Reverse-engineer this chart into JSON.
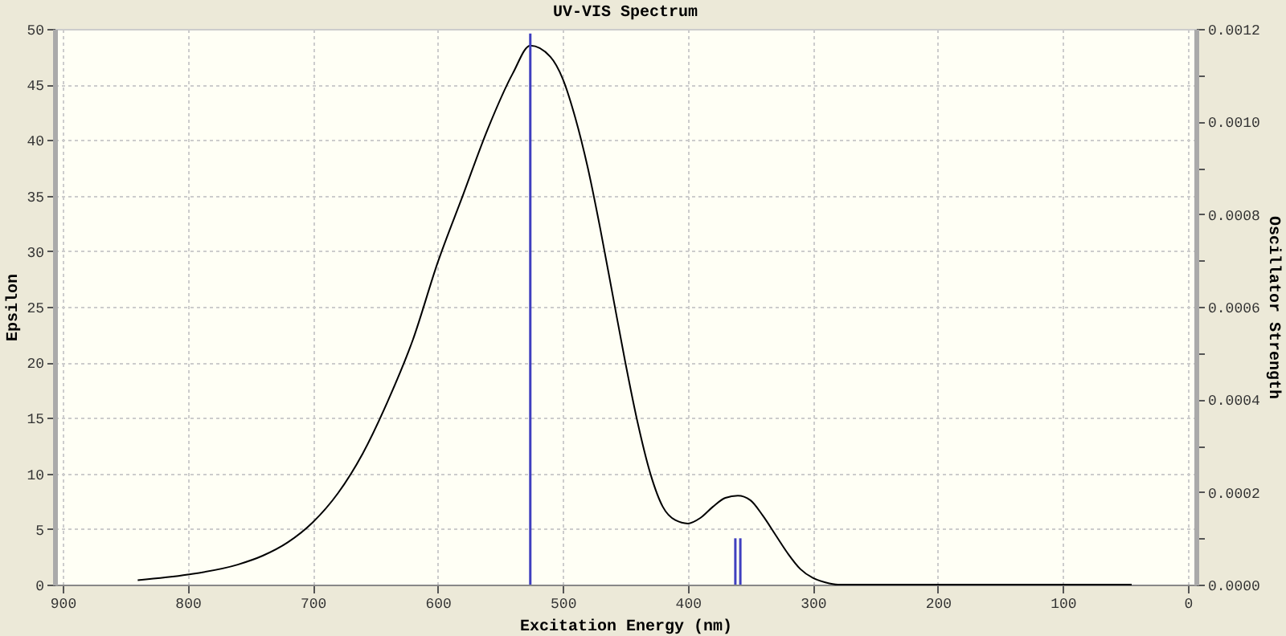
{
  "chart_data": {
    "type": "line",
    "title": "UV-VIS Spectrum",
    "xlabel": "Excitation Energy (nm)",
    "ylabel": "Epsilon",
    "y2label": "Oscillator Strength",
    "xlim": [
      900,
      0
    ],
    "xticks": [
      900,
      800,
      700,
      600,
      500,
      400,
      300,
      200,
      100,
      0
    ],
    "ylim": [
      0,
      50
    ],
    "yticks": [
      0,
      5,
      10,
      15,
      20,
      25,
      30,
      35,
      40,
      45,
      50
    ],
    "y2lim": [
      0,
      0.0012
    ],
    "y2ticks": [
      {
        "value": 0,
        "label": "0.0000"
      },
      {
        "value": 0.0001,
        "label": null
      },
      {
        "value": 0.0002,
        "label": "0.0002"
      },
      {
        "value": 0.0003,
        "label": null
      },
      {
        "value": 0.0004,
        "label": "0.0004"
      },
      {
        "value": 0.0005,
        "label": null
      },
      {
        "value": 0.0006,
        "label": "0.0006"
      },
      {
        "value": 0.0007,
        "label": null
      },
      {
        "value": 0.0008,
        "label": "0.0008"
      },
      {
        "value": 0.0009,
        "label": null
      },
      {
        "value": 0.001,
        "label": "0.0010"
      },
      {
        "value": 0.0011,
        "label": null
      },
      {
        "value": 0.0012,
        "label": "0.0012"
      }
    ],
    "grid": true,
    "line_style": "solid",
    "marker": "none",
    "series": [
      {
        "color": "#000000",
        "x": [
          840,
          800,
          760,
          740,
          720,
          700,
          680,
          660,
          640,
          620,
          600,
          580,
          560,
          540,
          526,
          510,
          500,
          490,
          480,
          470,
          460,
          450,
          440,
          430,
          420,
          410,
          400,
          390,
          380,
          370,
          360,
          350,
          340,
          330,
          320,
          310,
          300,
          290,
          280,
          250,
          45
        ],
        "values": [
          0.4,
          0.9,
          1.8,
          2.6,
          3.8,
          5.6,
          8.2,
          11.8,
          16.5,
          22,
          29,
          35,
          41,
          46,
          48.5,
          47.5,
          45.5,
          42,
          37.5,
          32,
          26,
          20,
          14.5,
          10,
          7,
          5.8,
          5.5,
          6,
          7,
          7.8,
          8,
          7.6,
          6.2,
          4.5,
          2.8,
          1.4,
          0.6,
          0.2,
          0,
          0,
          0
        ]
      },
      {
        "type": "bar",
        "axis": "y2",
        "color": "#3f3fbf",
        "x": [
          526,
          362,
          358
        ],
        "values": [
          0.00119,
          0.0001,
          0.0001
        ]
      }
    ]
  }
}
